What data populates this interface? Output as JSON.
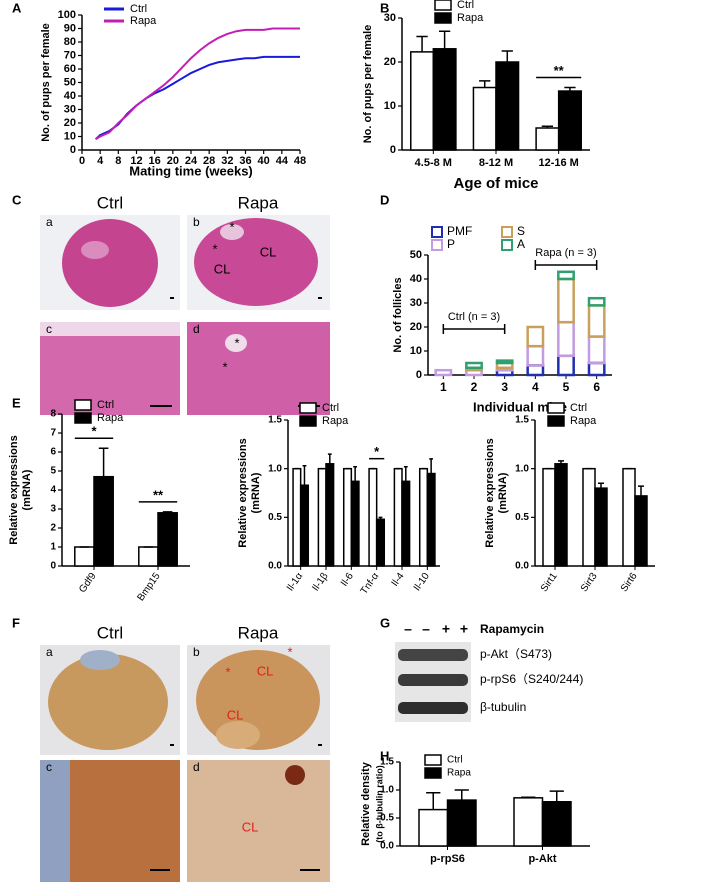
{
  "panel_labels": [
    "A",
    "B",
    "C",
    "D",
    "E",
    "F",
    "G",
    "H"
  ],
  "chart_data": [
    {
      "type": "line",
      "x": [
        3,
        4,
        6,
        8,
        10,
        12,
        14,
        16,
        18,
        20,
        22,
        24,
        26,
        28,
        30,
        32,
        34,
        36,
        38,
        40,
        42,
        44,
        46,
        48
      ],
      "series": [
        {
          "name": "Ctrl",
          "color": "#1a1adb",
          "values": [
            8,
            11,
            14,
            19,
            27,
            33,
            38,
            42,
            45,
            49,
            53,
            57,
            60,
            63,
            65,
            66,
            67,
            68,
            68,
            69,
            69,
            69,
            69,
            69
          ]
        },
        {
          "name": "Rapa",
          "color": "#c21fb5",
          "values": [
            8,
            10,
            13,
            20,
            26,
            33,
            38,
            43,
            48,
            54,
            61,
            68,
            74,
            79,
            83,
            86,
            88,
            89,
            89,
            89,
            90,
            90,
            90,
            90
          ]
        }
      ],
      "xlim": [
        0,
        48
      ],
      "xticks": [
        0,
        4,
        8,
        12,
        16,
        20,
        24,
        28,
        32,
        36,
        40,
        44,
        48
      ],
      "ylim": [
        0,
        100
      ],
      "yticks": [
        0,
        10,
        20,
        30,
        40,
        50,
        60,
        70,
        80,
        90,
        100
      ],
      "xlabel": "Mating time (weeks)",
      "ylabel": [
        "No. of pups per female"
      ],
      "legend": "upper left"
    },
    {
      "type": "bar",
      "categories": [
        "4.5-8 M",
        "8-12 M",
        "12-16 M"
      ],
      "series": [
        {
          "name": "Ctrl",
          "color": "#ffffff",
          "values": [
            22.3,
            14.2,
            5
          ],
          "errors": [
            3.5,
            1.5,
            0.4
          ]
        },
        {
          "name": "Rapa",
          "color": "#000000",
          "values": [
            23,
            20,
            13.4
          ],
          "errors": [
            4,
            2.5,
            0.8
          ]
        }
      ],
      "ylim": [
        0,
        30
      ],
      "yticks": [
        0,
        10,
        20,
        30
      ],
      "xlabel": "Age of mice",
      "ylabel": [
        "No. of pups per female"
      ],
      "legend": "top",
      "annotations": [
        {
          "text": "**",
          "category": "12-16 M"
        }
      ]
    },
    {
      "type": "stacked_bar",
      "categories": [
        "1",
        "2",
        "3",
        "4",
        "5",
        "6"
      ],
      "series": [
        {
          "name": "PMF",
          "color": "#1f2fb0",
          "values": [
            0,
            0,
            2,
            4,
            8,
            5
          ]
        },
        {
          "name": "P",
          "color": "#c39be0",
          "values": [
            2,
            2,
            1,
            8,
            14,
            11
          ]
        },
        {
          "name": "S",
          "color": "#c9a05a",
          "values": [
            0,
            1,
            2,
            8,
            18,
            13
          ]
        },
        {
          "name": "A",
          "color": "#2fa070",
          "values": [
            0,
            2,
            1,
            0,
            3,
            3
          ]
        }
      ],
      "ylim": [
        0,
        50
      ],
      "yticks": [
        0,
        10,
        20,
        30,
        40,
        50
      ],
      "xlabel": "Individual mice",
      "ylabel": [
        "No. of follicles"
      ],
      "legend": "top",
      "annotations": [
        {
          "text": "Ctrl (n = 3)",
          "categories": [
            "1",
            "3"
          ]
        },
        {
          "text": "Rapa (n = 3)",
          "categories": [
            "4",
            "6"
          ]
        }
      ]
    },
    {
      "type": "bar",
      "categories": [
        "Gdf9",
        "Bmp15"
      ],
      "series": [
        {
          "name": "Ctrl",
          "color": "#ffffff",
          "values": [
            1,
            1
          ],
          "errors": [
            0,
            0
          ]
        },
        {
          "name": "Rapa",
          "color": "#000000",
          "values": [
            4.7,
            2.8
          ],
          "errors": [
            1.5,
            0.05
          ]
        }
      ],
      "ylim": [
        0,
        8
      ],
      "yticks": [
        0,
        1,
        2,
        3,
        4,
        5,
        6,
        7,
        8
      ],
      "ylabel": [
        "Relative expressions",
        "(mRNA)"
      ],
      "legend": "upper left",
      "annotations": [
        {
          "text": "*",
          "category": "Gdf9"
        },
        {
          "text": "**",
          "category": "Bmp15"
        }
      ]
    },
    {
      "type": "bar",
      "categories": [
        "Il-1α",
        "Il-1β",
        "Il-6",
        "Tnf-α",
        "Il-4",
        "Il-10"
      ],
      "series": [
        {
          "name": "Ctrl",
          "color": "#ffffff",
          "values": [
            1,
            1,
            1,
            1,
            1,
            1
          ],
          "errors": [
            0,
            0,
            0,
            0,
            0,
            0
          ]
        },
        {
          "name": "Rapa",
          "color": "#000000",
          "values": [
            0.83,
            1.05,
            0.87,
            0.48,
            0.87,
            0.95
          ],
          "errors": [
            0.2,
            0.1,
            0.15,
            0.02,
            0.15,
            0.15
          ]
        }
      ],
      "ylim": [
        0,
        1.5
      ],
      "yticks": [
        {
          "value": 0,
          "label": "0.0"
        },
        0.5,
        {
          "value": 1,
          "label": "1.0"
        },
        1.5
      ],
      "ylabel": [
        "Relative expressions",
        "(mRNA)"
      ],
      "legend": "upper left",
      "annotations": [
        {
          "text": "*",
          "category": "Tnf-α"
        }
      ]
    },
    {
      "type": "bar",
      "categories": [
        "Sirt1",
        "Sirt3",
        "Sirt6"
      ],
      "series": [
        {
          "name": "Ctrl",
          "color": "#ffffff",
          "values": [
            1,
            1,
            1
          ],
          "errors": [
            0,
            0,
            0
          ]
        },
        {
          "name": "Rapa",
          "color": "#000000",
          "values": [
            1.05,
            0.8,
            0.72
          ],
          "errors": [
            0.03,
            0.05,
            0.1
          ]
        }
      ],
      "ylim": [
        0,
        1.5
      ],
      "yticks": [
        {
          "value": 0,
          "label": "0.0"
        },
        0.5,
        {
          "value": 1,
          "label": "1.0"
        },
        1.5
      ],
      "ylabel": [
        "Relative expressions",
        "(mRNA)"
      ],
      "legend": "upper left"
    },
    {
      "type": "bar",
      "categories": [
        "p-rpS6",
        "p-Akt"
      ],
      "series": [
        {
          "name": "Ctrl",
          "color": "#ffffff",
          "values": [
            0.65,
            0.86
          ],
          "errors": [
            0.3,
            0.01
          ]
        },
        {
          "name": "Rapa",
          "color": "#000000",
          "values": [
            0.82,
            0.79
          ],
          "errors": [
            0.18,
            0.19
          ]
        }
      ],
      "ylim": [
        0,
        1.5
      ],
      "yticks": [
        {
          "value": 0,
          "label": "0.0"
        },
        0.5,
        {
          "value": 1,
          "label": "1.0"
        },
        1.5
      ],
      "ylabel": [
        "Relative density",
        "(to β-tubulin ratio)"
      ],
      "legend": "upper left"
    }
  ],
  "histology_c": {
    "headers": [
      "Ctrl",
      "Rapa"
    ],
    "panels": [
      {
        "letter": "a",
        "labels": []
      },
      {
        "letter": "b",
        "labels": [
          "*",
          "*",
          "CL",
          "CL"
        ]
      },
      {
        "letter": "c",
        "labels": []
      },
      {
        "letter": "d",
        "labels": [
          "*",
          "*"
        ]
      }
    ]
  },
  "histology_f": {
    "headers": [
      "Ctrl",
      "Rapa"
    ],
    "panels": [
      {
        "letter": "a",
        "labels": []
      },
      {
        "letter": "b",
        "labels": [
          "*",
          "*",
          "CL",
          "CL"
        ]
      },
      {
        "letter": "c",
        "labels": []
      },
      {
        "letter": "d",
        "labels": [
          "CL"
        ]
      }
    ]
  },
  "blot": {
    "treatment": [
      "–",
      "–",
      "+",
      "+"
    ],
    "treatment_label": "Rapamycin",
    "bands": [
      "p-Akt（S473)",
      "p-rpS6（S240/244)",
      "β-tubulin"
    ]
  }
}
